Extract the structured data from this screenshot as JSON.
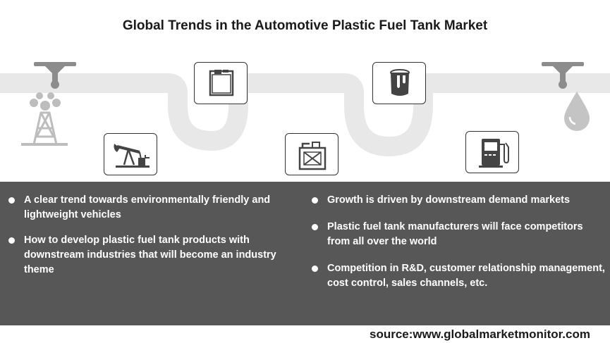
{
  "title": "Global Trends in the Automotive Plastic Fuel Tank Market",
  "icons": [
    "oil-derrick-icon",
    "pump-jack-icon",
    "fuel-tank-icon",
    "jerry-can-icon",
    "paint-bucket-icon",
    "fuel-pump-icon",
    "oil-drop-icon",
    "pipe-fitting-icon"
  ],
  "colors": {
    "panel": "#575757",
    "track": "#e8e8e8",
    "icon": "#444444",
    "text_light": "#ffffff"
  },
  "left_items": [
    "A clear trend towards environmentally friendly and lightweight vehicles",
    "How to develop plastic fuel tank products with downstream industries that will become an industry theme"
  ],
  "right_items": [
    "Growth is driven by downstream demand markets",
    "Plastic fuel tank manufacturers will face competitors from all over the world",
    "Competition in R&D, customer relationship management, cost control, sales channels, etc."
  ],
  "source": "source:www.globalmarketmonitor.com"
}
